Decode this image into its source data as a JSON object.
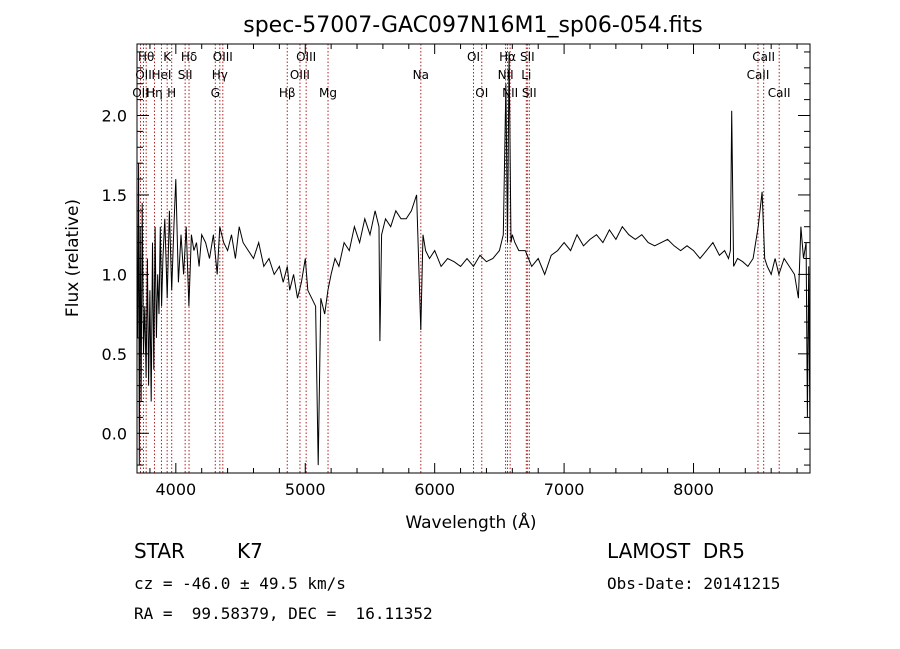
{
  "chart_data": {
    "type": "line",
    "title": "spec-57007-GAC097N16M1_sp06-054.fits",
    "xlabel": "Wavelength (Å)",
    "ylabel": "Flux (relative)",
    "xlim": [
      3700,
      8900
    ],
    "ylim": [
      -0.25,
      2.45
    ],
    "xticks": [
      4000,
      5000,
      6000,
      7000,
      8000
    ],
    "yticks": [
      0.0,
      0.5,
      1.0,
      1.5,
      2.0
    ],
    "xtick_labels": [
      "4000",
      "5000",
      "6000",
      "7000",
      "8000"
    ],
    "ytick_labels": [
      "0.0",
      "0.5",
      "1.0",
      "1.5",
      "2.0"
    ],
    "grid": false,
    "series": [
      {
        "color": "#000000",
        "x": [
          3705,
          3712,
          3718,
          3725,
          3732,
          3740,
          3750,
          3760,
          3770,
          3780,
          3790,
          3800,
          3810,
          3820,
          3830,
          3840,
          3850,
          3860,
          3870,
          3880,
          3890,
          3900,
          3915,
          3933,
          3950,
          3968,
          3985,
          4000,
          4020,
          4040,
          4060,
          4080,
          4101,
          4120,
          4140,
          4160,
          4180,
          4200,
          4230,
          4260,
          4290,
          4320,
          4340,
          4370,
          4400,
          4430,
          4460,
          4490,
          4520,
          4560,
          4600,
          4640,
          4680,
          4720,
          4760,
          4800,
          4830,
          4861,
          4880,
          4910,
          4940,
          4970,
          5000,
          5020,
          5050,
          5080,
          5100,
          5120,
          5150,
          5175,
          5200,
          5230,
          5260,
          5300,
          5340,
          5380,
          5420,
          5460,
          5500,
          5540,
          5570,
          5577,
          5590,
          5620,
          5660,
          5700,
          5740,
          5780,
          5820,
          5860,
          5893,
          5910,
          5930,
          5960,
          6000,
          6050,
          6100,
          6150,
          6200,
          6250,
          6300,
          6350,
          6400,
          6450,
          6500,
          6530,
          6550,
          6563,
          6575,
          6590,
          6600,
          6620,
          6650,
          6700,
          6750,
          6800,
          6850,
          6900,
          6950,
          7000,
          7050,
          7100,
          7150,
          7200,
          7250,
          7300,
          7350,
          7400,
          7450,
          7500,
          7550,
          7600,
          7650,
          7700,
          7750,
          7800,
          7850,
          7900,
          7950,
          8000,
          8050,
          8100,
          8150,
          8200,
          8240,
          8270,
          8285,
          8295,
          8310,
          8340,
          8380,
          8420,
          8460,
          8500,
          8530,
          8550,
          8570,
          8600,
          8630,
          8660,
          8700,
          8740,
          8780,
          8810,
          8830,
          8850,
          8870,
          8880,
          8890,
          8900
        ],
        "y": [
          0.6,
          1.7,
          -0.2,
          1.3,
          0.2,
          1.45,
          0.5,
          0.8,
          0.35,
          1.1,
          0.3,
          0.9,
          0.2,
          1.2,
          0.4,
          1.3,
          0.6,
          1.0,
          0.75,
          1.3,
          0.8,
          1.1,
          1.35,
          0.85,
          1.4,
          0.9,
          1.3,
          1.6,
          0.95,
          1.25,
          1.0,
          1.3,
          0.8,
          1.25,
          1.15,
          1.2,
          1.05,
          1.25,
          1.2,
          1.1,
          1.25,
          1.0,
          1.3,
          1.2,
          1.15,
          1.25,
          1.1,
          1.3,
          1.2,
          1.15,
          1.1,
          1.2,
          1.05,
          1.1,
          1.0,
          1.05,
          0.95,
          1.05,
          0.9,
          1.0,
          0.85,
          0.95,
          1.1,
          0.9,
          0.85,
          0.8,
          -0.2,
          0.85,
          0.75,
          0.9,
          1.0,
          1.1,
          1.05,
          1.2,
          1.15,
          1.3,
          1.2,
          1.35,
          1.25,
          1.4,
          1.3,
          0.58,
          1.25,
          1.35,
          1.3,
          1.4,
          1.35,
          1.35,
          1.4,
          1.5,
          0.65,
          1.25,
          1.15,
          1.1,
          1.15,
          1.05,
          1.1,
          1.08,
          1.05,
          1.1,
          1.05,
          1.12,
          1.08,
          1.1,
          1.15,
          1.25,
          2.2,
          1.2,
          2.4,
          1.2,
          1.25,
          1.2,
          1.15,
          1.15,
          1.05,
          1.1,
          1.0,
          1.12,
          1.15,
          1.2,
          1.15,
          1.25,
          1.18,
          1.22,
          1.25,
          1.2,
          1.28,
          1.22,
          1.3,
          1.25,
          1.22,
          1.25,
          1.2,
          1.18,
          1.2,
          1.22,
          1.18,
          1.15,
          1.18,
          1.15,
          1.1,
          1.15,
          1.2,
          1.12,
          1.15,
          1.1,
          1.15,
          2.03,
          1.05,
          1.1,
          1.08,
          1.05,
          1.1,
          1.3,
          1.52,
          1.1,
          1.05,
          1.0,
          1.1,
          1.0,
          1.1,
          1.05,
          1.0,
          0.85,
          1.3,
          1.1,
          1.2,
          0.1,
          1.05,
          -0.05
        ]
      }
    ],
    "lines": [
      {
        "x": 3727,
        "label": "OII",
        "row": 2
      },
      {
        "x": 3750,
        "label": "OII",
        "row": 1
      },
      {
        "x": 3771,
        "label": "Hθ",
        "row": 0
      },
      {
        "x": 3835,
        "label": "Hη",
        "row": 2
      },
      {
        "x": 3889,
        "label": "HeI",
        "row": 1
      },
      {
        "x": 3933,
        "label": "K",
        "row": 0
      },
      {
        "x": 3968,
        "label": "H",
        "row": 2
      },
      {
        "x": 4072,
        "label": "SII",
        "row": 1
      },
      {
        "x": 4102,
        "label": "Hδ",
        "row": 0
      },
      {
        "x": 4305,
        "label": "G",
        "row": 2
      },
      {
        "x": 4340,
        "label": "Hγ",
        "row": 1
      },
      {
        "x": 4363,
        "label": "OIII",
        "row": 0
      },
      {
        "x": 4861,
        "label": "Hβ",
        "row": 2
      },
      {
        "x": 4959,
        "label": "OIII",
        "row": 1
      },
      {
        "x": 5007,
        "label": "OIII",
        "row": 0
      },
      {
        "x": 5176,
        "label": "Mg",
        "row": 2
      },
      {
        "x": 5893,
        "label": "Na",
        "row": 1
      },
      {
        "x": 6300,
        "label": "OI",
        "row": 0
      },
      {
        "x": 6364,
        "label": "OI",
        "row": 2
      },
      {
        "x": 6548,
        "label": "NII",
        "row": 1
      },
      {
        "x": 6563,
        "label": "Hα",
        "row": 0
      },
      {
        "x": 6583,
        "label": "NII",
        "row": 2
      },
      {
        "x": 6708,
        "label": "Li",
        "row": 1
      },
      {
        "x": 6716,
        "label": "SII",
        "row": 0
      },
      {
        "x": 6731,
        "label": "SII",
        "row": 2
      },
      {
        "x": 8498,
        "label": "CaII",
        "row": 1
      },
      {
        "x": 8542,
        "label": "CaII",
        "row": 0
      },
      {
        "x": 8662,
        "label": "CaII",
        "row": 2
      }
    ],
    "line_color": "#b22222"
  },
  "info": {
    "object_class": "STAR",
    "subclass": "K7",
    "survey": "LAMOST  DR5",
    "cz": "cz = -46.0 ± 49.5 km/s",
    "obs_date": "Obs-Date: 20141215",
    "coords": "RA =  99.58379, DEC =  16.11352"
  }
}
